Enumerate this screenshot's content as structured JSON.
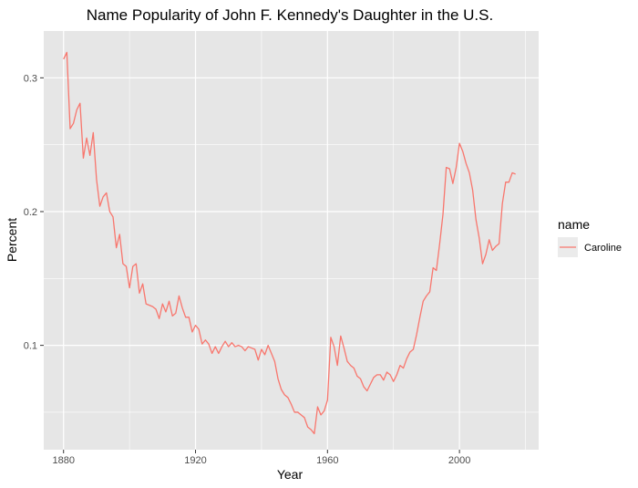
{
  "chart_data": {
    "type": "line",
    "title": "Name Popularity of John F. Kennedy's Daughter in the U.S.",
    "xlabel": "Year",
    "ylabel": "Percent",
    "xlim": [
      1874,
      2024
    ],
    "ylim": [
      0.022,
      0.335
    ],
    "xticks": [
      1880,
      1920,
      1960,
      2000
    ],
    "yticks": [
      0.1,
      0.2,
      0.3
    ],
    "xticks_minor": [
      1900,
      1940,
      1980,
      2020
    ],
    "yticks_minor": [
      0.05,
      0.15,
      0.25
    ],
    "grid": true,
    "legend": {
      "title": "name",
      "position": "right"
    },
    "colors": {
      "panel": "#e6e6e6",
      "grid": "#ffffff",
      "line": "#f8766d",
      "legend_key": "#ebebeb"
    },
    "series": [
      {
        "name": "Caroline",
        "x": [
          1880,
          1881,
          1882,
          1883,
          1884,
          1885,
          1886,
          1887,
          1888,
          1889,
          1890,
          1891,
          1892,
          1893,
          1894,
          1895,
          1896,
          1897,
          1898,
          1899,
          1900,
          1901,
          1902,
          1903,
          1904,
          1905,
          1906,
          1907,
          1908,
          1909,
          1910,
          1911,
          1912,
          1913,
          1914,
          1915,
          1916,
          1917,
          1918,
          1919,
          1920,
          1921,
          1922,
          1923,
          1924,
          1925,
          1926,
          1927,
          1928,
          1929,
          1930,
          1931,
          1932,
          1933,
          1934,
          1935,
          1936,
          1937,
          1938,
          1939,
          1940,
          1941,
          1942,
          1943,
          1944,
          1945,
          1946,
          1947,
          1948,
          1949,
          1950,
          1951,
          1952,
          1953,
          1954,
          1955,
          1956,
          1957,
          1958,
          1959,
          1960,
          1961,
          1962,
          1963,
          1964,
          1965,
          1966,
          1967,
          1968,
          1969,
          1970,
          1971,
          1972,
          1973,
          1974,
          1975,
          1976,
          1977,
          1978,
          1979,
          1980,
          1981,
          1982,
          1983,
          1984,
          1985,
          1986,
          1987,
          1988,
          1989,
          1990,
          1991,
          1992,
          1993,
          1994,
          1995,
          1996,
          1997,
          1998,
          1999,
          2000,
          2001,
          2002,
          2003,
          2004,
          2005,
          2006,
          2007,
          2008,
          2009,
          2010,
          2011,
          2012,
          2013,
          2014,
          2015,
          2016,
          2017
        ],
        "values": [
          0.314,
          0.319,
          0.262,
          0.266,
          0.276,
          0.281,
          0.24,
          0.255,
          0.242,
          0.259,
          0.224,
          0.204,
          0.211,
          0.214,
          0.2,
          0.196,
          0.173,
          0.183,
          0.161,
          0.159,
          0.143,
          0.159,
          0.161,
          0.139,
          0.146,
          0.131,
          0.13,
          0.129,
          0.127,
          0.12,
          0.131,
          0.125,
          0.133,
          0.122,
          0.124,
          0.137,
          0.128,
          0.121,
          0.121,
          0.11,
          0.115,
          0.112,
          0.101,
          0.104,
          0.101,
          0.094,
          0.099,
          0.094,
          0.099,
          0.103,
          0.099,
          0.102,
          0.099,
          0.1,
          0.099,
          0.096,
          0.099,
          0.098,
          0.097,
          0.089,
          0.097,
          0.093,
          0.1,
          0.094,
          0.088,
          0.075,
          0.067,
          0.063,
          0.061,
          0.056,
          0.05,
          0.05,
          0.048,
          0.046,
          0.039,
          0.037,
          0.034,
          0.054,
          0.048,
          0.051,
          0.059,
          0.106,
          0.099,
          0.085,
          0.107,
          0.098,
          0.088,
          0.085,
          0.083,
          0.077,
          0.075,
          0.069,
          0.066,
          0.071,
          0.076,
          0.078,
          0.078,
          0.074,
          0.08,
          0.078,
          0.073,
          0.078,
          0.085,
          0.083,
          0.09,
          0.095,
          0.097,
          0.108,
          0.121,
          0.133,
          0.137,
          0.14,
          0.158,
          0.156,
          0.176,
          0.198,
          0.233,
          0.232,
          0.221,
          0.233,
          0.251,
          0.245,
          0.236,
          0.229,
          0.216,
          0.194,
          0.18,
          0.161,
          0.168,
          0.179,
          0.171,
          0.174,
          0.176,
          0.206,
          0.222,
          0.222,
          0.229,
          0.228
        ]
      }
    ]
  }
}
